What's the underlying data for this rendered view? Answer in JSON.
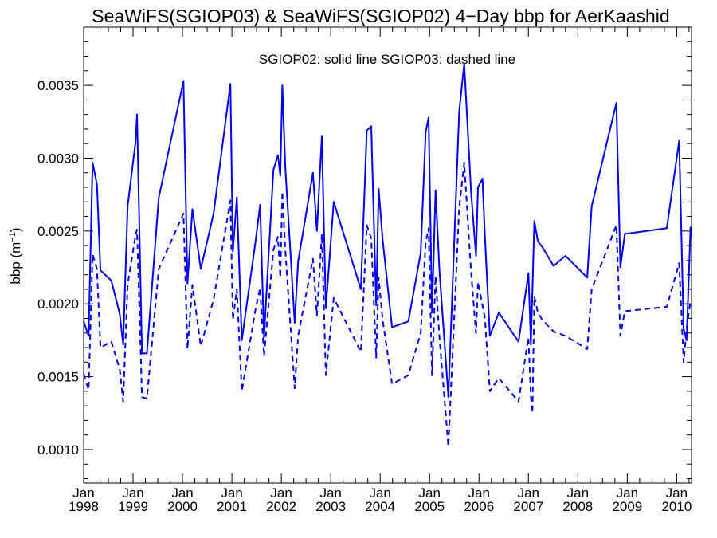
{
  "chart_data": {
    "type": "line",
    "title": "SeaWiFS(SGIOP03) & SeaWiFS(SGIOP02) 4−Day bbp for AerKaashid",
    "annotation": "SGIOP02: solid line   SGIOP03: dashed line",
    "ylabel": "bbp (m",
    "ylabel_sup": "−1",
    "ylabel_close": ")",
    "xlim": [
      1998.0,
      2010.3
    ],
    "ylim": [
      0.00077,
      0.0039
    ],
    "y_ticks": [
      {
        "value": 0.001,
        "label": "0.0010"
      },
      {
        "value": 0.0015,
        "label": "0.0015"
      },
      {
        "value": 0.002,
        "label": "0.0020"
      },
      {
        "value": 0.0025,
        "label": "0.0025"
      },
      {
        "value": 0.003,
        "label": "0.0030"
      },
      {
        "value": 0.0035,
        "label": "0.0035"
      }
    ],
    "x_ticks": [
      {
        "value": 1998,
        "month": "Jan",
        "year": "1998"
      },
      {
        "value": 1999,
        "month": "Jan",
        "year": "1999"
      },
      {
        "value": 2000,
        "month": "Jan",
        "year": "2000"
      },
      {
        "value": 2001,
        "month": "Jan",
        "year": "2001"
      },
      {
        "value": 2002,
        "month": "Jan",
        "year": "2002"
      },
      {
        "value": 2003,
        "month": "Jan",
        "year": "2003"
      },
      {
        "value": 2004,
        "month": "Jan",
        "year": "2004"
      },
      {
        "value": 2005,
        "month": "Jan",
        "year": "2005"
      },
      {
        "value": 2006,
        "month": "Jan",
        "year": "2006"
      },
      {
        "value": 2007,
        "month": "Jan",
        "year": "2007"
      },
      {
        "value": 2008,
        "month": "Jan",
        "year": "2008"
      },
      {
        "value": 2009,
        "month": "Jan",
        "year": "2009"
      },
      {
        "value": 2010,
        "month": "Jan",
        "year": "2010"
      }
    ],
    "series": [
      {
        "name": "SGIOP02",
        "style": "solid",
        "color": "#0000ff",
        "points": [
          [
            1998.0,
            0.00188
          ],
          [
            1998.1,
            0.00178
          ],
          [
            1998.18,
            0.00297
          ],
          [
            1998.27,
            0.00282
          ],
          [
            1998.34,
            0.00223
          ],
          [
            1998.56,
            0.00216
          ],
          [
            1998.73,
            0.00193
          ],
          [
            1998.8,
            0.00172
          ],
          [
            1998.89,
            0.00267
          ],
          [
            1999.05,
            0.00311
          ],
          [
            1999.08,
            0.0033
          ],
          [
            1999.18,
            0.00166
          ],
          [
            1999.28,
            0.00166
          ],
          [
            1999.52,
            0.00273
          ],
          [
            2000.02,
            0.00353
          ],
          [
            2000.1,
            0.00214
          ],
          [
            2000.2,
            0.00265
          ],
          [
            2000.37,
            0.00224
          ],
          [
            2000.63,
            0.00262
          ],
          [
            2000.97,
            0.00351
          ],
          [
            2001.02,
            0.00236
          ],
          [
            2001.1,
            0.00273
          ],
          [
            2001.2,
            0.00175
          ],
          [
            2001.47,
            0.00241
          ],
          [
            2001.57,
            0.00268
          ],
          [
            2001.65,
            0.00177
          ],
          [
            2001.84,
            0.00292
          ],
          [
            2001.93,
            0.00302
          ],
          [
            2001.98,
            0.00288
          ],
          [
            2002.02,
            0.0035
          ],
          [
            2002.08,
            0.00294
          ],
          [
            2002.27,
            0.00187
          ],
          [
            2002.34,
            0.00229
          ],
          [
            2002.64,
            0.0029
          ],
          [
            2002.72,
            0.0025
          ],
          [
            2002.82,
            0.00315
          ],
          [
            2002.9,
            0.00197
          ],
          [
            2003.06,
            0.0027
          ],
          [
            2003.61,
            0.0021
          ],
          [
            2003.73,
            0.00319
          ],
          [
            2003.82,
            0.00322
          ],
          [
            2003.92,
            0.00199
          ],
          [
            2003.97,
            0.00279
          ],
          [
            2004.05,
            0.00244
          ],
          [
            2004.24,
            0.00184
          ],
          [
            2004.57,
            0.00188
          ],
          [
            2004.82,
            0.00235
          ],
          [
            2004.92,
            0.00318
          ],
          [
            2004.98,
            0.00328
          ],
          [
            2005.05,
            0.00194
          ],
          [
            2005.12,
            0.00278
          ],
          [
            2005.2,
            0.00223
          ],
          [
            2005.38,
            0.00136
          ],
          [
            2005.6,
            0.00332
          ],
          [
            2005.7,
            0.00365
          ],
          [
            2005.84,
            0.00277
          ],
          [
            2005.94,
            0.00233
          ],
          [
            2005.98,
            0.0028
          ],
          [
            2006.07,
            0.00286
          ],
          [
            2006.12,
            0.00246
          ],
          [
            2006.22,
            0.00178
          ],
          [
            2006.4,
            0.00194
          ],
          [
            2006.8,
            0.00174
          ],
          [
            2007.0,
            0.00221
          ],
          [
            2007.05,
            0.00172
          ],
          [
            2007.12,
            0.00257
          ],
          [
            2007.19,
            0.00243
          ],
          [
            2007.28,
            0.00239
          ],
          [
            2007.51,
            0.00226
          ],
          [
            2007.75,
            0.00233
          ],
          [
            2008.19,
            0.00218
          ],
          [
            2008.28,
            0.00267
          ],
          [
            2008.78,
            0.00338
          ],
          [
            2008.86,
            0.00225
          ],
          [
            2008.95,
            0.00248
          ],
          [
            2009.8,
            0.00252
          ],
          [
            2010.05,
            0.00312
          ],
          [
            2010.14,
            0.00183
          ],
          [
            2010.2,
            0.00175
          ],
          [
            2010.28,
            0.00253
          ]
        ]
      },
      {
        "name": "SGIOP03",
        "style": "dashed",
        "color": "#0000ff",
        "points": [
          [
            1998.0,
            0.00152
          ],
          [
            1998.1,
            0.00141
          ],
          [
            1998.18,
            0.00234
          ],
          [
            1998.27,
            0.00224
          ],
          [
            1998.34,
            0.0017
          ],
          [
            1998.56,
            0.00174
          ],
          [
            1998.73,
            0.00155
          ],
          [
            1998.8,
            0.00133
          ],
          [
            1998.89,
            0.00213
          ],
          [
            1999.05,
            0.00247
          ],
          [
            1999.08,
            0.00251
          ],
          [
            1999.18,
            0.00136
          ],
          [
            1999.28,
            0.00135
          ],
          [
            1999.52,
            0.00224
          ],
          [
            2000.02,
            0.00262
          ],
          [
            2000.1,
            0.00169
          ],
          [
            2000.2,
            0.00213
          ],
          [
            2000.37,
            0.00171
          ],
          [
            2000.63,
            0.00203
          ],
          [
            2000.97,
            0.00271
          ],
          [
            2001.02,
            0.00189
          ],
          [
            2001.1,
            0.0021
          ],
          [
            2001.2,
            0.0014
          ],
          [
            2001.47,
            0.00195
          ],
          [
            2001.57,
            0.00211
          ],
          [
            2001.65,
            0.00164
          ],
          [
            2001.84,
            0.00237
          ],
          [
            2001.93,
            0.00246
          ],
          [
            2001.98,
            0.00218
          ],
          [
            2002.02,
            0.00277
          ],
          [
            2002.08,
            0.00237
          ],
          [
            2002.27,
            0.00142
          ],
          [
            2002.34,
            0.00178
          ],
          [
            2002.64,
            0.00231
          ],
          [
            2002.72,
            0.00192
          ],
          [
            2002.82,
            0.00248
          ],
          [
            2002.9,
            0.00151
          ],
          [
            2003.06,
            0.00204
          ],
          [
            2003.61,
            0.00167
          ],
          [
            2003.73,
            0.00254
          ],
          [
            2003.82,
            0.00245
          ],
          [
            2003.92,
            0.00163
          ],
          [
            2003.97,
            0.00218
          ],
          [
            2004.05,
            0.00189
          ],
          [
            2004.24,
            0.00145
          ],
          [
            2004.57,
            0.00151
          ],
          [
            2004.82,
            0.0018
          ],
          [
            2004.92,
            0.00242
          ],
          [
            2004.98,
            0.00252
          ],
          [
            2005.05,
            0.00151
          ],
          [
            2005.12,
            0.00219
          ],
          [
            2005.2,
            0.00177
          ],
          [
            2005.38,
            0.00102
          ],
          [
            2005.6,
            0.00266
          ],
          [
            2005.7,
            0.00297
          ],
          [
            2005.84,
            0.00222
          ],
          [
            2005.94,
            0.0018
          ],
          [
            2005.98,
            0.00215
          ],
          [
            2006.07,
            0.00199
          ],
          [
            2006.12,
            0.0019
          ],
          [
            2006.22,
            0.0014
          ],
          [
            2006.4,
            0.00149
          ],
          [
            2006.8,
            0.00133
          ],
          [
            2007.0,
            0.00177
          ],
          [
            2007.05,
            0.00136
          ],
          [
            2007.08,
            0.00125
          ],
          [
            2007.12,
            0.00205
          ],
          [
            2007.19,
            0.00194
          ],
          [
            2007.28,
            0.00189
          ],
          [
            2007.51,
            0.00181
          ],
          [
            2007.75,
            0.00178
          ],
          [
            2008.19,
            0.00169
          ],
          [
            2008.28,
            0.0021
          ],
          [
            2008.78,
            0.00254
          ],
          [
            2008.86,
            0.00178
          ],
          [
            2008.95,
            0.00195
          ],
          [
            2009.8,
            0.00198
          ],
          [
            2010.05,
            0.00228
          ],
          [
            2010.14,
            0.0016
          ],
          [
            2010.2,
            0.00183
          ],
          [
            2010.28,
            0.00202
          ]
        ]
      }
    ]
  }
}
